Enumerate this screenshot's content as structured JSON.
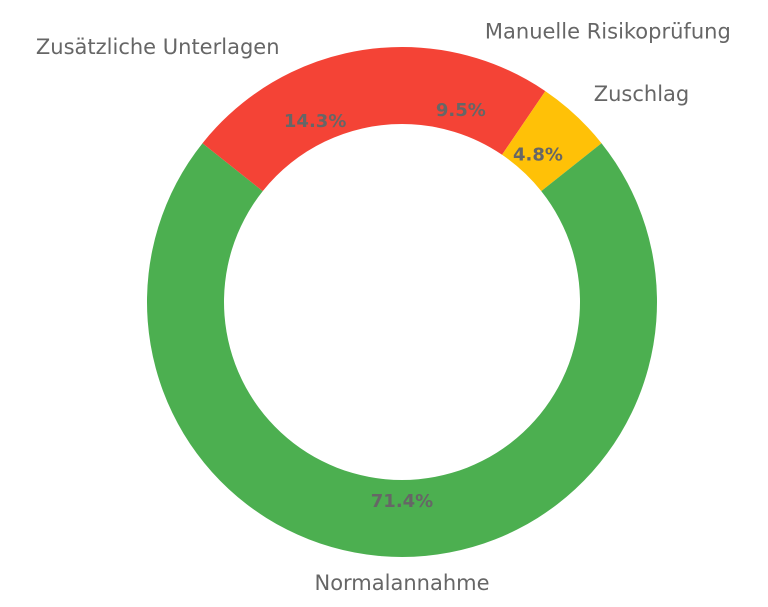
{
  "chart_data": {
    "type": "pie",
    "donut": true,
    "title": "",
    "start_angle_deg": 90,
    "direction": "clockwise",
    "slices": [
      {
        "label": "Manuelle Risikoprüfung",
        "value": 9.5,
        "pct_label": "9.5%",
        "color": "#f44336"
      },
      {
        "label": "Zuschlag",
        "value": 4.8,
        "pct_label": "4.8%",
        "color": "#ffc107"
      },
      {
        "label": "Normalannahme",
        "value": 71.4,
        "pct_label": "71.4%",
        "color": "#4caf50"
      },
      {
        "label": "Zusätzliche Unterlagen",
        "value": 14.3,
        "pct_label": "14.3%",
        "color": "#f44336"
      }
    ]
  }
}
